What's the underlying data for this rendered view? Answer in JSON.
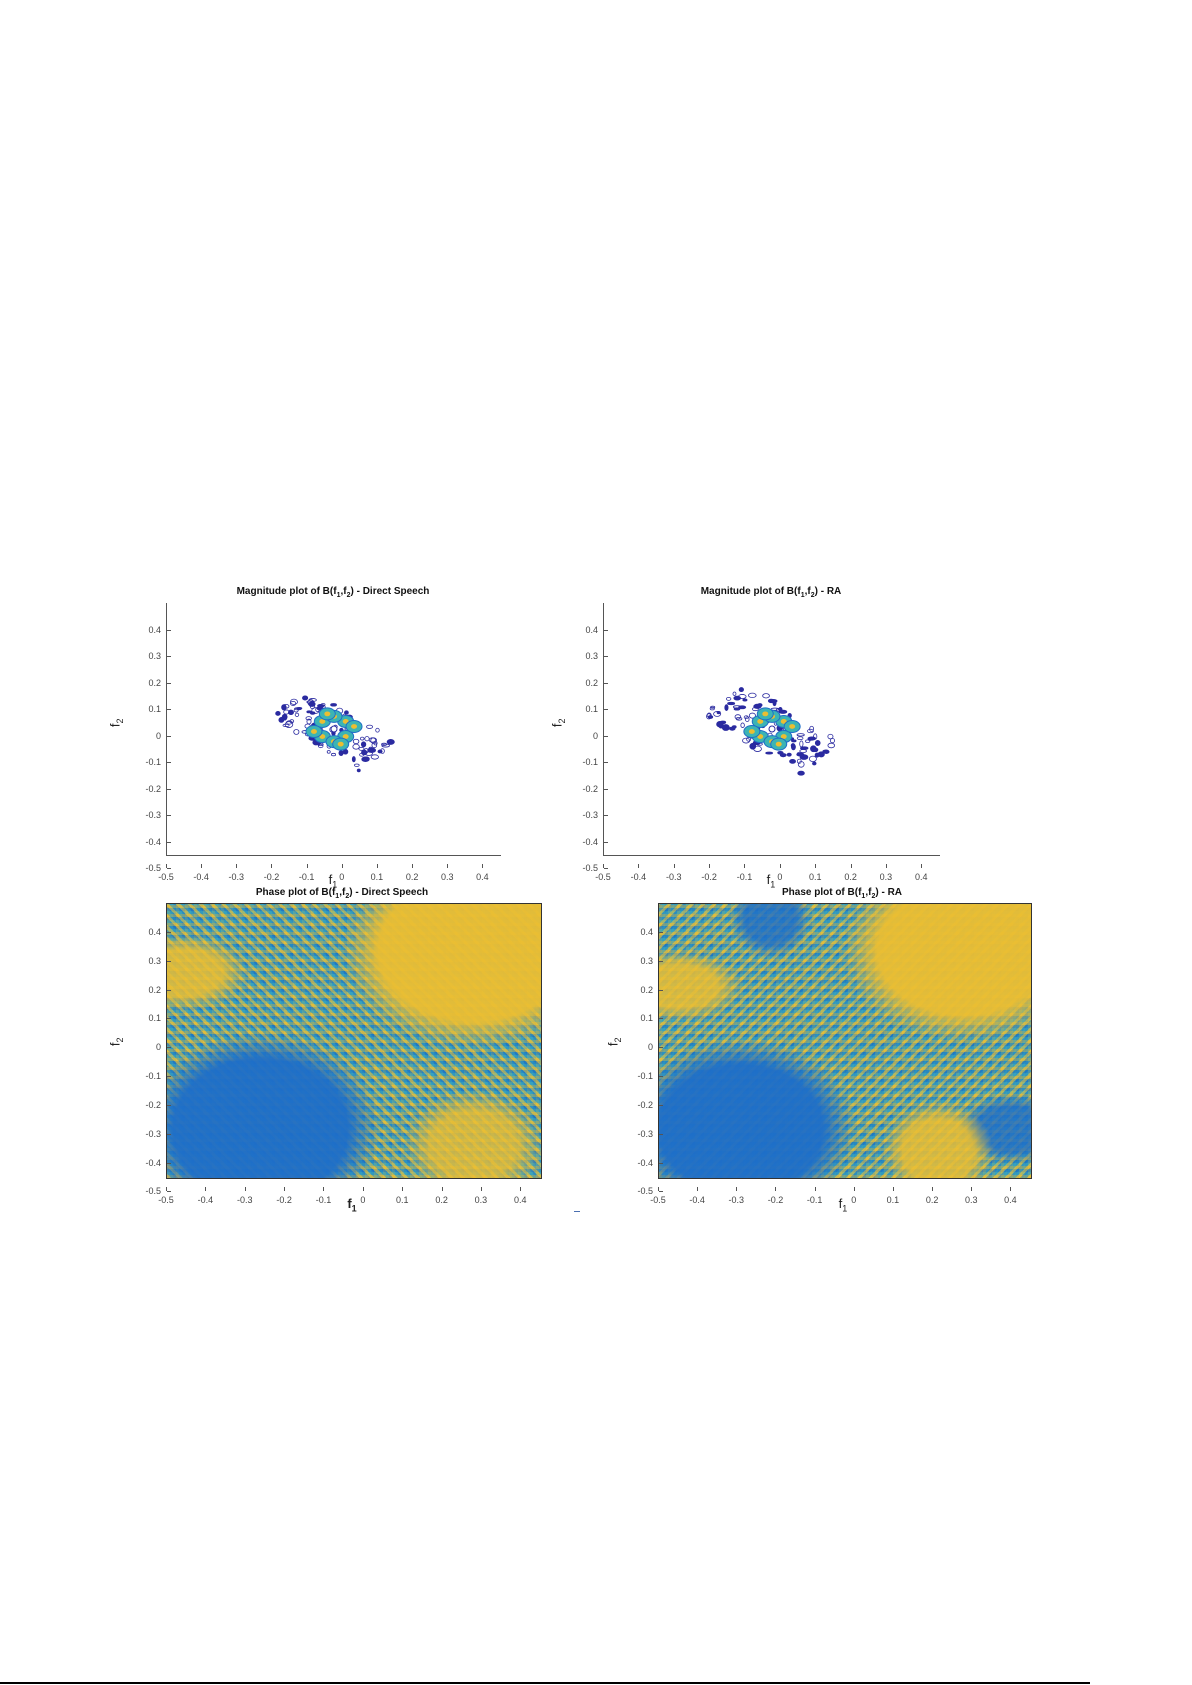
{
  "chart_data": [
    {
      "type": "contour",
      "title": "Magnitude plot of B(f1,f2) - Direct Speech",
      "xlabel": "f1",
      "ylabel": "f2",
      "xlim": [
        -0.5,
        0.5
      ],
      "ylim": [
        -0.5,
        0.5
      ],
      "xticks": [
        -0.5,
        -0.4,
        -0.3,
        -0.2,
        -0.1,
        0,
        0.1,
        0.2,
        0.3,
        0.4
      ],
      "yticks": [
        -0.5,
        -0.4,
        -0.3,
        -0.2,
        -0.1,
        0,
        0.1,
        0.2,
        0.3,
        0.4
      ],
      "description": "Contour cluster centered at origin, oriented along f2 = -f1, extent roughly f1 in [-0.15, 0.17], f2 in [-0.15, 0.15]",
      "colormap": "parula"
    },
    {
      "type": "contour",
      "title": "Magnitude plot of B(f1,f2) - RA",
      "xlabel": "f1",
      "ylabel": "f2",
      "xlim": [
        -0.5,
        0.5
      ],
      "ylim": [
        -0.5,
        0.5
      ],
      "xticks": [
        -0.5,
        -0.4,
        -0.3,
        -0.2,
        -0.1,
        0,
        0.1,
        0.2,
        0.3,
        0.4
      ],
      "yticks": [
        -0.5,
        -0.4,
        -0.3,
        -0.2,
        -0.1,
        0,
        0.1,
        0.2,
        0.3,
        0.4
      ],
      "description": "Compact contour cluster centered at origin, oriented along f2 = -f1, extent roughly f1 in [-0.18, 0.2], f2 in [-0.18, 0.18]",
      "colormap": "parula"
    },
    {
      "type": "heatmap",
      "title": "Phase plot of B(f1,f2) - Direct Speech",
      "xlabel": "f1",
      "ylabel": "f2",
      "xlim": [
        -0.5,
        0.5
      ],
      "ylim": [
        -0.5,
        0.5
      ],
      "xticks": [
        -0.5,
        -0.4,
        -0.3,
        -0.2,
        -0.1,
        0,
        0.1,
        0.2,
        0.3,
        0.4
      ],
      "yticks": [
        -0.5,
        -0.4,
        -0.3,
        -0.2,
        -0.1,
        0,
        0.1,
        0.2,
        0.3,
        0.4
      ],
      "description": "Phase map with horizontal/vertical stripe bands and diagonal bands; yellow region upper-right, blue region lower-left",
      "colormap": "parula"
    },
    {
      "type": "heatmap",
      "title": "Phase plot of B(f1,f2) - RA",
      "xlabel": "f1",
      "ylabel": "f2",
      "xlim": [
        -0.5,
        0.5
      ],
      "ylim": [
        -0.5,
        0.5
      ],
      "xticks": [
        -0.5,
        -0.4,
        -0.3,
        -0.2,
        -0.1,
        0,
        0.1,
        0.2,
        0.3,
        0.4
      ],
      "yticks": [
        -0.5,
        -0.4,
        -0.3,
        -0.2,
        -0.1,
        0,
        0.1,
        0.2,
        0.3,
        0.4
      ],
      "description": "Phase map with stripe bands and diagonal bands; yellow region upper-right, blue region lower-left, textured center",
      "colormap": "parula"
    }
  ],
  "plots": {
    "mag_ds": {
      "title_pre": "Magnitude plot of B(f",
      "title_sub1": "1",
      "title_mid": ",f",
      "title_sub2": "2",
      "title_post": ") - Direct Speech"
    },
    "mag_ra": {
      "title_pre": "Magnitude plot of B(f",
      "title_sub1": "1",
      "title_mid": ",f",
      "title_sub2": "2",
      "title_post": ") - RA"
    },
    "phase_ds": {
      "title_pre": "Phase plot of B(f",
      "title_sub1": "1",
      "title_mid": ",f",
      "title_sub2": "2",
      "title_post": ") - Direct Speech"
    },
    "phase_ra": {
      "title_pre": "Phase plot of B(f",
      "title_sub1": "1",
      "title_mid": ",f",
      "title_sub2": "2",
      "title_post": ") - RA"
    }
  },
  "axis_labels": {
    "x_base": "f",
    "x_sub": "1",
    "y_base": "f",
    "y_sub": "2"
  },
  "ticks": [
    "-0.5",
    "-0.4",
    "-0.3",
    "-0.2",
    "-0.1",
    "0",
    "0.1",
    "0.2",
    "0.3",
    "0.4"
  ],
  "colors": {
    "yellow": "#ebbe32",
    "teal": "#3cb4b4",
    "blue": "#1e6ec8",
    "navy": "#2a2aa0"
  }
}
